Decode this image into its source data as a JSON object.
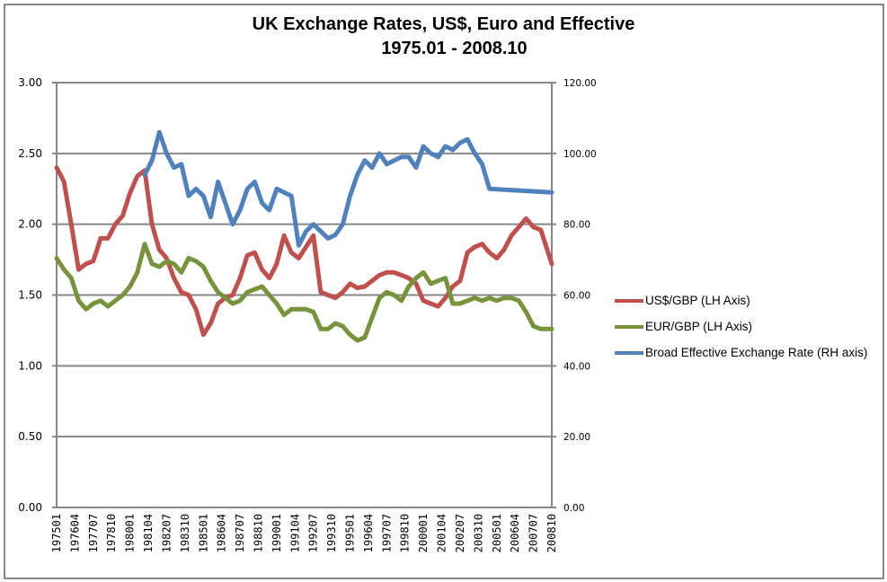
{
  "chart_data": {
    "type": "line",
    "title": "UK Exchange Rates, US$, Euro and Effective",
    "subtitle": "1975.01 - 2008.10",
    "xlabel": "",
    "ylabel_left": "",
    "ylabel_right": "",
    "left_axis": {
      "range": [
        0,
        3
      ],
      "ticks": [
        "0.00",
        "0.50",
        "1.00",
        "1.50",
        "2.00",
        "2.50",
        "3.00"
      ]
    },
    "right_axis": {
      "range": [
        0,
        120
      ],
      "ticks": [
        "0.00",
        "20.00",
        "40.00",
        "60.00",
        "80.00",
        "100.00",
        "120.00"
      ]
    },
    "grid": "horizontal",
    "legend_position": "right",
    "x_tick_labels": [
      "197501",
      "197604",
      "197707",
      "197810",
      "198001",
      "198104",
      "198207",
      "198310",
      "198501",
      "198604",
      "198707",
      "198810",
      "199001",
      "199104",
      "199207",
      "199310",
      "199501",
      "199604",
      "199707",
      "199810",
      "200001",
      "200104",
      "200207",
      "200310",
      "200501",
      "200604",
      "200707",
      "200810"
    ],
    "x_start": "1975.01",
    "x_end": "2008.10",
    "x_step_months": 6,
    "series": [
      {
        "name": "US$/GBP (LH Axis)",
        "axis": "left",
        "color": "#C0504D",
        "start_index_months": 0,
        "values": [
          2.4,
          2.3,
          2.0,
          1.68,
          1.72,
          1.74,
          1.9,
          1.9,
          2.0,
          2.06,
          2.22,
          2.34,
          2.38,
          2.0,
          1.82,
          1.76,
          1.62,
          1.52,
          1.5,
          1.4,
          1.22,
          1.3,
          1.44,
          1.48,
          1.5,
          1.62,
          1.78,
          1.8,
          1.68,
          1.62,
          1.72,
          1.92,
          1.8,
          1.76,
          1.84,
          1.92,
          1.52,
          1.5,
          1.48,
          1.52,
          1.58,
          1.55,
          1.56,
          1.6,
          1.64,
          1.66,
          1.66,
          1.64,
          1.62,
          1.58,
          1.46,
          1.44,
          1.42,
          1.48,
          1.56,
          1.6,
          1.8,
          1.84,
          1.86,
          1.8,
          1.76,
          1.82,
          1.92,
          1.98,
          2.04,
          1.98,
          1.96,
          1.72
        ]
      },
      {
        "name": "EUR/GBP (LH Axis)",
        "axis": "left",
        "color": "#77933C",
        "start_index_months": 0,
        "values": [
          1.76,
          1.68,
          1.62,
          1.46,
          1.4,
          1.44,
          1.46,
          1.42,
          1.46,
          1.5,
          1.56,
          1.66,
          1.86,
          1.72,
          1.7,
          1.74,
          1.72,
          1.66,
          1.76,
          1.74,
          1.7,
          1.6,
          1.52,
          1.48,
          1.44,
          1.46,
          1.52,
          1.54,
          1.56,
          1.5,
          1.44,
          1.36,
          1.4,
          1.4,
          1.4,
          1.38,
          1.26,
          1.26,
          1.3,
          1.28,
          1.22,
          1.18,
          1.2,
          1.34,
          1.48,
          1.52,
          1.5,
          1.46,
          1.56,
          1.62,
          1.66,
          1.58,
          1.6,
          1.62,
          1.44,
          1.44,
          1.46,
          1.48,
          1.46,
          1.48,
          1.46,
          1.48,
          1.48,
          1.46,
          1.38,
          1.28,
          1.26,
          1.26
        ]
      },
      {
        "name": "Broad Effective Exchange Rate (RH axis)",
        "axis": "right",
        "color": "#4F81BD",
        "start_index_months": 72,
        "values": [
          94.0,
          98.0,
          106.0,
          100.0,
          96.0,
          97.0,
          88.0,
          90.0,
          88.0,
          82.0,
          92.0,
          86.0,
          80.0,
          84.0,
          90.0,
          92.0,
          86.0,
          84.0,
          90.0,
          89.0,
          88.0,
          74.0,
          78.0,
          80.0,
          78.0,
          76.0,
          77.0,
          80.0,
          88.0,
          94.0,
          98.0,
          96.0,
          100.0,
          97.0,
          98.0,
          99.0,
          99.0,
          96.0,
          102.0,
          100.0,
          99.0,
          102.0,
          101.0,
          103.0,
          104.0,
          100.0,
          97.0,
          90.0,
          89.0
        ]
      }
    ]
  }
}
